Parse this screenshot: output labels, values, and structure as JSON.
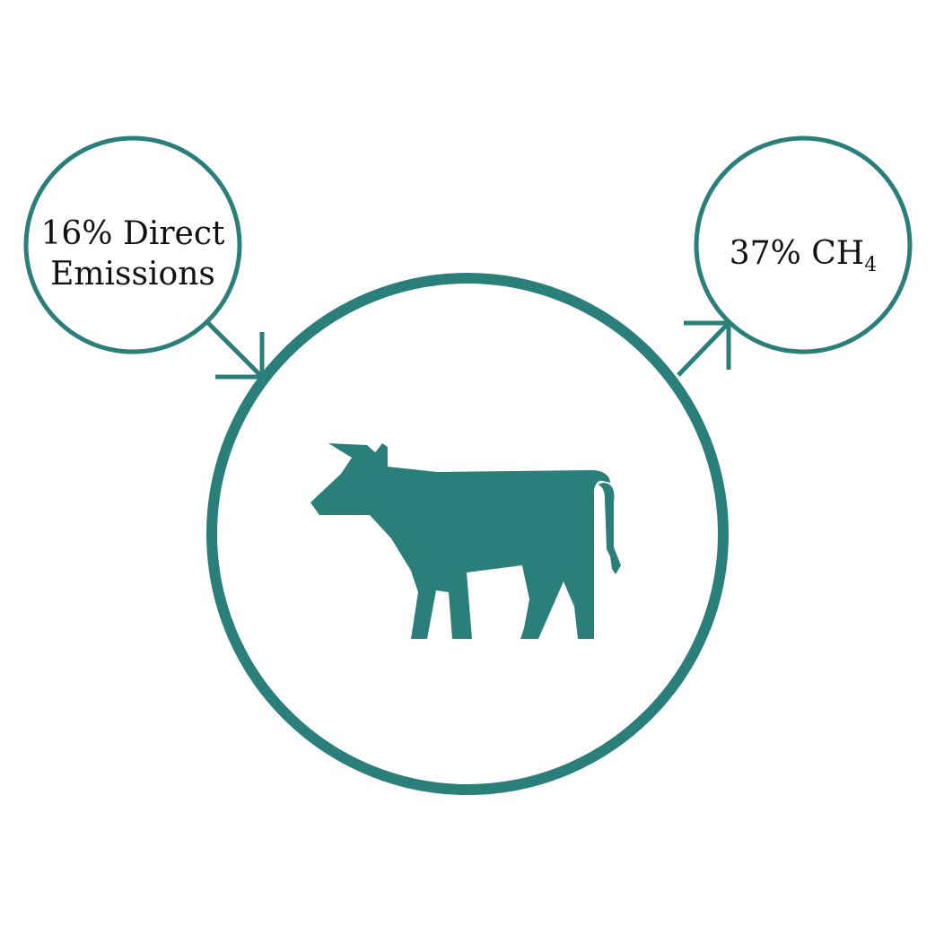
{
  "colors": {
    "accent": "#2a7f7b",
    "text": "#111111",
    "background": "#ffffff"
  },
  "left_node": {
    "line1": "16% Direct",
    "line2": "Emissions"
  },
  "right_node": {
    "main": "37% CH",
    "subscript": "4"
  },
  "center_node": {
    "icon": "cow-icon"
  }
}
